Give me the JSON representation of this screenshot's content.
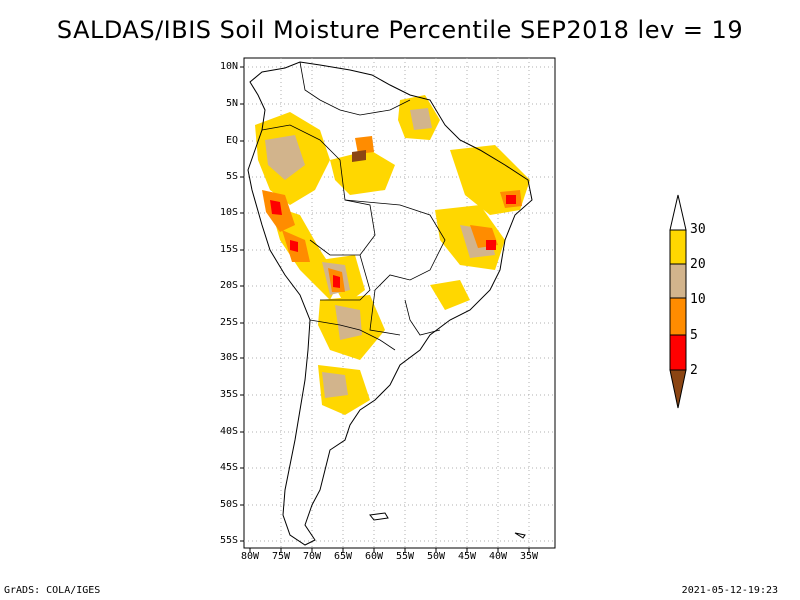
{
  "title": "SALDAS/IBIS Soil Moisture Percentile SEP2018 lev = 19",
  "footer_left": "GrADS: COLA/IGES",
  "footer_right": "2021-05-12-19:23",
  "lat_labels": [
    "10N",
    "5N",
    "EQ",
    "5S",
    "10S",
    "15S",
    "20S",
    "25S",
    "30S",
    "35S",
    "40S",
    "45S",
    "50S",
    "55S"
  ],
  "lon_labels": [
    "80W",
    "75W",
    "70W",
    "65W",
    "60W",
    "55W",
    "50W",
    "45W",
    "40W",
    "35W"
  ],
  "colorbar": {
    "labels": [
      "2",
      "5",
      "10",
      "20",
      "30"
    ],
    "colors": {
      "below_2": "#8b4513",
      "2_5": "#ff0000",
      "5_10": "#ff8c00",
      "10_20": "#d2b48c",
      "20_30": "#ffd700",
      "above_30": "#ffffff"
    }
  },
  "colors": {
    "coastline": "#000000",
    "grid": "#b0b0b0"
  }
}
